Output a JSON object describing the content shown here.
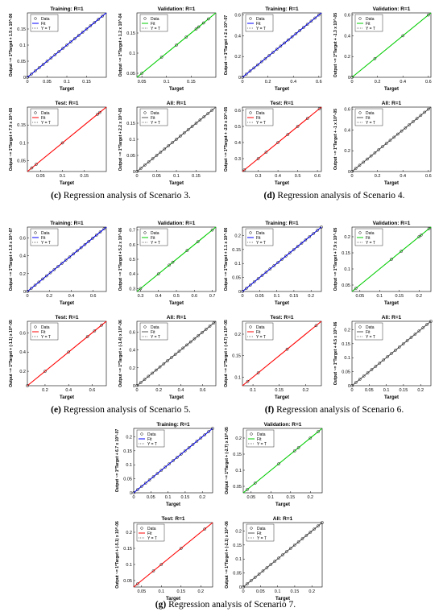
{
  "legend": {
    "data": "Data",
    "fit": "Fit",
    "yt": "Y = T"
  },
  "colors": {
    "training": "#0000ff",
    "validation": "#00cc00",
    "test": "#ff0000",
    "all": "#555555",
    "marker": "#000000"
  },
  "captions": [
    {
      "letter": "(c)",
      "text": " Regression analysis of Scenario 3."
    },
    {
      "letter": "(d)",
      "text": " Regression analysis of Scenario 4."
    },
    {
      "letter": "(e)",
      "text": " Regression analysis of Scenario 5."
    },
    {
      "letter": "(f)",
      "text": " Regression analysis of Scenario 6."
    },
    {
      "letter": "(g)",
      "text": " Regression analysis of Scenario 7."
    }
  ],
  "chart_data": [
    {
      "type": "scatter",
      "scenario": "c",
      "title": "Training: R=1",
      "xlabel": "Target",
      "ylabel": "Output ~= 1*Target + 1.5 x 10^-06",
      "xlim": [
        0,
        0.2
      ],
      "ylim": [
        0,
        0.2
      ],
      "xticks": [
        0,
        0.05,
        0.1,
        0.15
      ],
      "yticks": [
        0,
        0.05,
        0.1,
        0.15
      ],
      "color": "blue",
      "x": [
        0.0,
        0.01,
        0.02,
        0.03,
        0.04,
        0.05,
        0.06,
        0.07,
        0.08,
        0.09,
        0.1,
        0.11,
        0.12,
        0.13,
        0.14,
        0.15,
        0.16,
        0.17,
        0.18,
        0.19
      ],
      "y": [
        0.0,
        0.01,
        0.02,
        0.03,
        0.04,
        0.05,
        0.06,
        0.07,
        0.08,
        0.09,
        0.1,
        0.11,
        0.12,
        0.13,
        0.14,
        0.15,
        0.16,
        0.17,
        0.18,
        0.19
      ]
    },
    {
      "type": "scatter",
      "scenario": "c",
      "title": "Validation: R=1",
      "xlabel": "Target",
      "ylabel": "Output ~= 1*Target + 1.2 x 10^-04",
      "xlim": [
        0.04,
        0.2
      ],
      "ylim": [
        0.04,
        0.2
      ],
      "xticks": [
        0.05,
        0.1,
        0.15
      ],
      "yticks": [
        0.05,
        0.1,
        0.15
      ],
      "color": "green",
      "x": [
        0.05,
        0.09,
        0.12,
        0.14,
        0.16,
        0.165,
        0.175,
        0.185
      ],
      "y": [
        0.05,
        0.09,
        0.12,
        0.14,
        0.16,
        0.165,
        0.175,
        0.185
      ]
    },
    {
      "type": "scatter",
      "scenario": "c",
      "title": "Test: R=1",
      "xlabel": "Target",
      "ylabel": "Output ~= 1*Target + 7.9 x 10^-05",
      "xlim": [
        0.02,
        0.2
      ],
      "ylim": [
        0.02,
        0.2
      ],
      "xticks": [
        0.05,
        0.1,
        0.15
      ],
      "yticks": [
        0.05,
        0.1,
        0.15
      ],
      "color": "red",
      "x": [
        0.03,
        0.04,
        0.1,
        0.18,
        0.185
      ],
      "y": [
        0.03,
        0.04,
        0.1,
        0.18,
        0.185
      ]
    },
    {
      "type": "scatter",
      "scenario": "c",
      "title": "All: R=1",
      "xlabel": "Target",
      "ylabel": "Output ~= 1*Target + 2.2 x 10^-05",
      "xlim": [
        0,
        0.2
      ],
      "ylim": [
        0,
        0.2
      ],
      "xticks": [
        0,
        0.05,
        0.1,
        0.15
      ],
      "yticks": [
        0,
        0.05,
        0.1,
        0.15
      ],
      "color": "gray",
      "x": [
        0.0,
        0.01,
        0.02,
        0.03,
        0.04,
        0.05,
        0.06,
        0.07,
        0.08,
        0.09,
        0.1,
        0.11,
        0.12,
        0.13,
        0.14,
        0.15,
        0.16,
        0.17,
        0.18,
        0.19
      ],
      "y": [
        0.0,
        0.01,
        0.02,
        0.03,
        0.04,
        0.05,
        0.06,
        0.07,
        0.08,
        0.09,
        0.1,
        0.11,
        0.12,
        0.13,
        0.14,
        0.15,
        0.16,
        0.17,
        0.18,
        0.19
      ]
    },
    {
      "type": "scatter",
      "scenario": "d",
      "title": "Training: R=1",
      "xlabel": "Target",
      "ylabel": "Output ~= 1*Target + 2 x 10^-07",
      "xlim": [
        0,
        0.62
      ],
      "ylim": [
        0,
        0.62
      ],
      "xticks": [
        0,
        0.2,
        0.4,
        0.6
      ],
      "yticks": [
        0,
        0.2,
        0.4,
        0.6
      ],
      "color": "blue",
      "x": [
        0.0,
        0.03,
        0.06,
        0.09,
        0.12,
        0.15,
        0.18,
        0.21,
        0.24,
        0.27,
        0.3,
        0.33,
        0.36,
        0.39,
        0.42,
        0.45,
        0.48,
        0.51,
        0.54,
        0.57,
        0.6
      ],
      "y": [
        0.0,
        0.03,
        0.06,
        0.09,
        0.12,
        0.15,
        0.18,
        0.21,
        0.24,
        0.27,
        0.3,
        0.33,
        0.36,
        0.39,
        0.42,
        0.45,
        0.48,
        0.51,
        0.54,
        0.57,
        0.6
      ]
    },
    {
      "type": "scatter",
      "scenario": "d",
      "title": "Validation: R=1",
      "xlabel": "Target",
      "ylabel": "Output ~= 1*Target + -1.3 x 10^-05",
      "xlim": [
        0,
        0.62
      ],
      "ylim": [
        0,
        0.62
      ],
      "xticks": [
        0,
        0.2,
        0.4,
        0.6
      ],
      "yticks": [
        0,
        0.2,
        0.4,
        0.6
      ],
      "color": "green",
      "x": [
        0.0,
        0.18,
        0.4,
        0.6
      ],
      "y": [
        0.0,
        0.18,
        0.4,
        0.6
      ]
    },
    {
      "type": "scatter",
      "scenario": "d",
      "title": "Test: R=1",
      "xlabel": "Target",
      "ylabel": "Output ~= 1*Target + -2.9 x 10^-05",
      "xlim": [
        0.22,
        0.62
      ],
      "ylim": [
        0.22,
        0.62
      ],
      "xticks": [
        0.3,
        0.4,
        0.5,
        0.6
      ],
      "yticks": [
        0.3,
        0.4,
        0.5,
        0.6
      ],
      "color": "red",
      "x": [
        0.23,
        0.3,
        0.34,
        0.4,
        0.45,
        0.5,
        0.55,
        0.61
      ],
      "y": [
        0.23,
        0.3,
        0.34,
        0.4,
        0.45,
        0.5,
        0.55,
        0.61
      ]
    },
    {
      "type": "scatter",
      "scenario": "d",
      "title": "All: R=1",
      "xlabel": "Target",
      "ylabel": "Output ~= 1*Target + -1 x 10^-05",
      "xlim": [
        0,
        0.62
      ],
      "ylim": [
        0,
        0.62
      ],
      "xticks": [
        0,
        0.2,
        0.4,
        0.6
      ],
      "yticks": [
        0,
        0.2,
        0.4,
        0.6
      ],
      "color": "gray",
      "x": [
        0.0,
        0.03,
        0.06,
        0.09,
        0.12,
        0.15,
        0.18,
        0.21,
        0.24,
        0.27,
        0.3,
        0.33,
        0.36,
        0.39,
        0.42,
        0.45,
        0.48,
        0.51,
        0.54,
        0.57,
        0.6
      ],
      "y": [
        0.0,
        0.03,
        0.06,
        0.09,
        0.12,
        0.15,
        0.18,
        0.21,
        0.24,
        0.27,
        0.3,
        0.33,
        0.36,
        0.39,
        0.42,
        0.45,
        0.48,
        0.51,
        0.54,
        0.57,
        0.6
      ]
    },
    {
      "type": "scatter",
      "scenario": "e",
      "title": "Training: R=1",
      "xlabel": "Target",
      "ylabel": "Output ~= 1*Target + 1.8 x 10^-07",
      "xlim": [
        0,
        0.72
      ],
      "ylim": [
        0,
        0.72
      ],
      "xticks": [
        0,
        0.2,
        0.4,
        0.6
      ],
      "yticks": [
        0,
        0.2,
        0.4,
        0.6
      ],
      "color": "blue",
      "x": [
        0.0,
        0.035,
        0.07,
        0.105,
        0.14,
        0.175,
        0.21,
        0.245,
        0.28,
        0.315,
        0.35,
        0.385,
        0.42,
        0.455,
        0.49,
        0.525,
        0.56,
        0.595,
        0.63,
        0.665,
        0.7
      ],
      "y": [
        0.0,
        0.035,
        0.07,
        0.105,
        0.14,
        0.175,
        0.21,
        0.245,
        0.28,
        0.315,
        0.35,
        0.385,
        0.42,
        0.455,
        0.49,
        0.525,
        0.56,
        0.595,
        0.63,
        0.665,
        0.7
      ]
    },
    {
      "type": "scatter",
      "scenario": "e",
      "title": "Validation: R=1",
      "xlabel": "Target",
      "ylabel": "Output ~= 1*Target + 5.2 x 10^-06",
      "xlim": [
        0.28,
        0.72
      ],
      "ylim": [
        0.28,
        0.72
      ],
      "xticks": [
        0.3,
        0.4,
        0.5,
        0.6,
        0.7
      ],
      "yticks": [
        0.3,
        0.4,
        0.5,
        0.6,
        0.7
      ],
      "color": "green",
      "x": [
        0.3,
        0.4,
        0.46,
        0.48,
        0.56,
        0.62,
        0.7
      ],
      "y": [
        0.3,
        0.4,
        0.46,
        0.48,
        0.56,
        0.62,
        0.7
      ]
    },
    {
      "type": "scatter",
      "scenario": "e",
      "title": "Test: R=1",
      "xlabel": "Target",
      "ylabel": "Output ~= 1*Target + (-1.1) x 10^-05",
      "xlim": [
        0.05,
        0.72
      ],
      "ylim": [
        0.05,
        0.72
      ],
      "xticks": [
        0.2,
        0.4,
        0.6
      ],
      "yticks": [
        0.2,
        0.4,
        0.6
      ],
      "color": "red",
      "x": [
        0.05,
        0.2,
        0.4,
        0.56,
        0.62,
        0.68
      ],
      "y": [
        0.05,
        0.2,
        0.4,
        0.56,
        0.62,
        0.68
      ]
    },
    {
      "type": "scatter",
      "scenario": "e",
      "title": "All: R=1",
      "xlabel": "Target",
      "ylabel": "Output ~= 1*Target + (-1.4) x 10^-06",
      "xlim": [
        0,
        0.72
      ],
      "ylim": [
        0,
        0.72
      ],
      "xticks": [
        0,
        0.2,
        0.4,
        0.6
      ],
      "yticks": [
        0,
        0.2,
        0.4,
        0.6
      ],
      "color": "gray",
      "x": [
        0.0,
        0.035,
        0.07,
        0.105,
        0.14,
        0.175,
        0.21,
        0.245,
        0.28,
        0.315,
        0.35,
        0.385,
        0.42,
        0.455,
        0.49,
        0.525,
        0.56,
        0.595,
        0.63,
        0.665,
        0.7
      ],
      "y": [
        0.0,
        0.035,
        0.07,
        0.105,
        0.14,
        0.175,
        0.21,
        0.245,
        0.28,
        0.315,
        0.35,
        0.385,
        0.42,
        0.455,
        0.49,
        0.525,
        0.56,
        0.595,
        0.63,
        0.665,
        0.7
      ]
    },
    {
      "type": "scatter",
      "scenario": "f",
      "title": "Training: R=1",
      "xlabel": "Target",
      "ylabel": "Output ~= 1*Target + 1.1 x 10^-06",
      "xlim": [
        0,
        0.23
      ],
      "ylim": [
        0,
        0.23
      ],
      "xticks": [
        0,
        0.05,
        0.1,
        0.15,
        0.2
      ],
      "yticks": [
        0,
        0.05,
        0.1,
        0.15,
        0.2
      ],
      "color": "blue",
      "x": [
        0.0,
        0.0115,
        0.023,
        0.0345,
        0.046,
        0.0575,
        0.069,
        0.0805,
        0.092,
        0.1035,
        0.115,
        0.1265,
        0.138,
        0.1495,
        0.161,
        0.1725,
        0.184,
        0.1955,
        0.207,
        0.2185,
        0.23
      ],
      "y": [
        0.0,
        0.0115,
        0.023,
        0.0345,
        0.046,
        0.0575,
        0.069,
        0.0805,
        0.092,
        0.1035,
        0.115,
        0.1265,
        0.138,
        0.1495,
        0.161,
        0.1725,
        0.184,
        0.1955,
        0.207,
        0.2185,
        0.23
      ]
    },
    {
      "type": "scatter",
      "scenario": "f",
      "title": "Validation: R=1",
      "xlabel": "Target",
      "ylabel": "Output ~= 1*Target + 7.9 x 10^-05",
      "xlim": [
        0.03,
        0.23
      ],
      "ylim": [
        0.03,
        0.23
      ],
      "xticks": [
        0.05,
        0.1,
        0.15,
        0.2
      ],
      "yticks": [
        0.05,
        0.1,
        0.15,
        0.2
      ],
      "color": "green",
      "x": [
        0.04,
        0.13,
        0.155,
        0.2,
        0.205,
        0.225
      ],
      "y": [
        0.04,
        0.13,
        0.155,
        0.2,
        0.205,
        0.225
      ]
    },
    {
      "type": "scatter",
      "scenario": "f",
      "title": "Test: R=1",
      "xlabel": "Target",
      "ylabel": "Output ~= 1*Target + (-4.7) x 10^-05",
      "xlim": [
        0.08,
        0.23
      ],
      "ylim": [
        0.08,
        0.23
      ],
      "xticks": [
        0.1,
        0.15,
        0.2
      ],
      "yticks": [
        0.1,
        0.15,
        0.2
      ],
      "color": "red",
      "x": [
        0.09,
        0.11,
        0.165,
        0.22
      ],
      "y": [
        0.09,
        0.11,
        0.165,
        0.22
      ]
    },
    {
      "type": "scatter",
      "scenario": "f",
      "title": "All: R=1",
      "xlabel": "Target",
      "ylabel": "Output ~= 1*Target + 4.5 x 10^-06",
      "xlim": [
        0,
        0.23
      ],
      "ylim": [
        0,
        0.23
      ],
      "xticks": [
        0,
        0.05,
        0.1,
        0.15,
        0.2
      ],
      "yticks": [
        0,
        0.05,
        0.1,
        0.15,
        0.2
      ],
      "color": "gray",
      "x": [
        0.0,
        0.0115,
        0.023,
        0.0345,
        0.046,
        0.0575,
        0.069,
        0.0805,
        0.092,
        0.1035,
        0.115,
        0.1265,
        0.138,
        0.1495,
        0.161,
        0.1725,
        0.184,
        0.1955,
        0.207,
        0.2185,
        0.23
      ],
      "y": [
        0.0,
        0.0115,
        0.023,
        0.0345,
        0.046,
        0.0575,
        0.069,
        0.0805,
        0.092,
        0.1035,
        0.115,
        0.1265,
        0.138,
        0.1495,
        0.161,
        0.1725,
        0.184,
        0.1955,
        0.207,
        0.2185,
        0.23
      ]
    },
    {
      "type": "scatter",
      "scenario": "g",
      "title": "Training: R=1",
      "xlabel": "Target",
      "ylabel": "Output ~= 1*Target + 6.7 x 10^-07",
      "xlim": [
        0,
        0.23
      ],
      "ylim": [
        0,
        0.23
      ],
      "xticks": [
        0,
        0.05,
        0.1,
        0.15,
        0.2
      ],
      "yticks": [
        0,
        0.05,
        0.1,
        0.15,
        0.2
      ],
      "color": "blue",
      "x": [
        0.0,
        0.0115,
        0.023,
        0.0345,
        0.046,
        0.0575,
        0.069,
        0.0805,
        0.092,
        0.1035,
        0.115,
        0.1265,
        0.138,
        0.1495,
        0.161,
        0.1725,
        0.184,
        0.1955,
        0.207,
        0.2185,
        0.23
      ],
      "y": [
        0.0,
        0.0115,
        0.023,
        0.0345,
        0.046,
        0.0575,
        0.069,
        0.0805,
        0.092,
        0.1035,
        0.115,
        0.1265,
        0.138,
        0.1495,
        0.161,
        0.1725,
        0.184,
        0.1955,
        0.207,
        0.2185,
        0.23
      ]
    },
    {
      "type": "scatter",
      "scenario": "g",
      "title": "Validation: R=1",
      "xlabel": "Target",
      "ylabel": "Output ~= 1*Target + (-2.7) x 10^-05",
      "xlim": [
        0.03,
        0.23
      ],
      "ylim": [
        0.03,
        0.23
      ],
      "xticks": [
        0.05,
        0.1,
        0.15,
        0.2
      ],
      "yticks": [
        0.05,
        0.1,
        0.15,
        0.2
      ],
      "color": "green",
      "x": [
        0.04,
        0.06,
        0.12,
        0.16,
        0.17,
        0.2,
        0.22
      ],
      "y": [
        0.04,
        0.06,
        0.12,
        0.16,
        0.17,
        0.2,
        0.22
      ]
    },
    {
      "type": "scatter",
      "scenario": "g",
      "title": "Test: R=1",
      "xlabel": "Target",
      "ylabel": "Output ~= 1*Target + (-5.1) x 10^-06",
      "xlim": [
        0.03,
        0.23
      ],
      "ylim": [
        0.03,
        0.23
      ],
      "xticks": [
        0.05,
        0.1,
        0.15,
        0.2
      ],
      "yticks": [
        0.05,
        0.1,
        0.15,
        0.2
      ],
      "color": "red",
      "x": [
        0.04,
        0.08,
        0.1,
        0.15,
        0.21
      ],
      "y": [
        0.04,
        0.08,
        0.1,
        0.15,
        0.21
      ]
    },
    {
      "type": "scatter",
      "scenario": "g",
      "title": "All: R=1",
      "xlabel": "Target",
      "ylabel": "Output ~= 1*Target + (-2.1) x 10^-06",
      "xlim": [
        0,
        0.23
      ],
      "ylim": [
        0,
        0.23
      ],
      "xticks": [
        0,
        0.05,
        0.1,
        0.15,
        0.2
      ],
      "yticks": [
        0,
        0.05,
        0.1,
        0.15,
        0.2
      ],
      "color": "gray",
      "x": [
        0.0,
        0.0115,
        0.023,
        0.0345,
        0.046,
        0.0575,
        0.069,
        0.0805,
        0.092,
        0.1035,
        0.115,
        0.1265,
        0.138,
        0.1495,
        0.161,
        0.1725,
        0.184,
        0.1955,
        0.207,
        0.2185,
        0.23
      ],
      "y": [
        0.0,
        0.0115,
        0.023,
        0.0345,
        0.046,
        0.0575,
        0.069,
        0.0805,
        0.092,
        0.1035,
        0.115,
        0.1265,
        0.138,
        0.1495,
        0.161,
        0.1725,
        0.184,
        0.1955,
        0.207,
        0.2185,
        0.23
      ]
    }
  ]
}
